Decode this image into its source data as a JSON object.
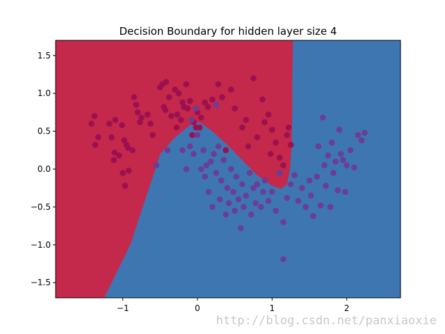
{
  "chart_data": {
    "type": "scatter",
    "title": "Decision Boundary for hidden layer size 4",
    "xlabel": "",
    "ylabel": "",
    "xlim": [
      -1.9,
      2.72
    ],
    "ylim": [
      -1.7,
      1.7
    ],
    "xticks": [
      -1,
      0,
      1,
      2
    ],
    "xtick_labels": [
      "−1",
      "0",
      "1",
      "2"
    ],
    "yticks": [
      -1.5,
      -1.0,
      -0.5,
      0.0,
      0.5,
      1.0,
      1.5
    ],
    "ytick_labels": [
      "−1.5",
      "−1.0",
      "−0.5",
      "0.0",
      "0.5",
      "1.0",
      "1.5"
    ],
    "grid": false,
    "legend": "none",
    "colors": {
      "region_red": "#c4284a",
      "region_blue": "#3e76b2",
      "class_0_point": "#9c1050",
      "class_1_point": "#6a3d96"
    },
    "decision_boundary": [
      [
        -1.25,
        -1.7
      ],
      [
        -0.9,
        -1.0
      ],
      [
        -0.7,
        -0.4
      ],
      [
        -0.58,
        -0.05
      ],
      [
        -0.5,
        0.2
      ],
      [
        -0.3,
        0.42
      ],
      [
        -0.1,
        0.58
      ],
      [
        0.03,
        0.62
      ],
      [
        0.2,
        0.5
      ],
      [
        0.4,
        0.32
      ],
      [
        0.6,
        0.12
      ],
      [
        0.8,
        -0.08
      ],
      [
        1.0,
        -0.22
      ],
      [
        1.12,
        -0.26
      ],
      [
        1.2,
        -0.2
      ],
      [
        1.24,
        0.0
      ],
      [
        1.26,
        0.3
      ],
      [
        1.27,
        0.8
      ],
      [
        1.27,
        1.2
      ],
      [
        1.28,
        1.7
      ]
    ],
    "series": [
      {
        "class": 0,
        "x": [
          -1.42,
          -1.38,
          -1.37,
          -1.33,
          -1.18,
          -1.15,
          -1.12,
          -1.11,
          -1.1,
          -1.05,
          -1.01,
          -1.0,
          -0.98,
          -0.97,
          -0.95,
          -0.93,
          -0.92,
          -0.87,
          -0.85,
          -0.82,
          -0.8,
          -0.77,
          -0.75,
          -0.67,
          -0.63,
          -0.6,
          -0.5,
          -0.47,
          -0.45,
          -0.43,
          -0.42,
          -0.38,
          -0.35,
          -0.3,
          -0.28,
          -0.27,
          -0.25,
          -0.22,
          -0.2,
          -0.18,
          -0.15,
          -0.13,
          -0.1,
          -0.07,
          -0.05,
          -0.02,
          0.0,
          0.05,
          0.1,
          0.14,
          0.2,
          0.28,
          0.33,
          0.38,
          0.45,
          0.5,
          0.6,
          0.65,
          0.68,
          0.75,
          0.8,
          0.87,
          0.9,
          0.95,
          0.98,
          1.0,
          1.05,
          1.1,
          1.15,
          1.2,
          1.22,
          1.25,
          0.03
        ],
        "y": [
          0.6,
          0.7,
          0.32,
          0.42,
          0.6,
          0.42,
          0.12,
          0.22,
          0.65,
          0.18,
          0.58,
          -0.05,
          0.38,
          -0.22,
          0.32,
          0.28,
          -0.02,
          0.25,
          0.95,
          0.85,
          0.75,
          0.62,
          0.68,
          0.72,
          0.6,
          0.45,
          1.08,
          1.12,
          0.82,
          0.78,
          1.15,
          0.95,
          0.7,
          1.05,
          0.55,
          0.72,
          1.0,
          0.65,
          0.88,
          0.82,
          1.12,
          0.8,
          0.9,
          0.45,
          0.62,
          0.55,
          0.75,
          0.68,
          0.88,
          0.82,
          0.92,
          1.12,
          0.95,
          0.25,
          1.05,
          0.8,
          0.55,
          0.65,
          0.3,
          1.2,
          0.42,
          0.92,
          0.62,
          0.72,
          0.2,
          0.52,
          0.35,
          0.15,
          0.05,
          0.45,
          0.55,
          0.32,
          0.55
        ]
      },
      {
        "class": 1,
        "x": [
          -0.55,
          -0.4,
          -0.2,
          -0.15,
          -0.1,
          -0.08,
          -0.05,
          0.0,
          0.05,
          0.08,
          0.1,
          0.12,
          0.15,
          0.18,
          0.2,
          0.22,
          0.25,
          0.28,
          0.3,
          0.32,
          0.35,
          0.38,
          0.4,
          0.42,
          0.45,
          0.48,
          0.5,
          0.52,
          0.55,
          0.58,
          0.6,
          0.62,
          0.65,
          0.7,
          0.72,
          0.75,
          0.78,
          0.8,
          0.85,
          0.88,
          0.9,
          0.95,
          1.0,
          1.05,
          1.1,
          1.15,
          1.2,
          1.25,
          1.3,
          1.35,
          1.4,
          1.45,
          1.5,
          1.52,
          1.55,
          1.6,
          1.62,
          1.65,
          1.7,
          1.72,
          1.75,
          1.78,
          1.8,
          1.82,
          1.85,
          1.88,
          1.9,
          1.92,
          1.95,
          1.98,
          2.0,
          2.05,
          2.1,
          2.15,
          2.2,
          2.24,
          1.68,
          0.25,
          -0.02
        ],
        "y": [
          0.05,
          0.25,
          0.25,
          0.0,
          0.3,
          0.65,
          0.2,
          0.45,
          0.0,
          0.25,
          -0.1,
          0.05,
          -0.3,
          0.1,
          -0.5,
          0.2,
          -0.05,
          0.3,
          -0.4,
          -0.15,
          0.12,
          -0.6,
          -0.25,
          -0.45,
          0.0,
          -0.3,
          -0.55,
          -0.1,
          -0.4,
          -0.78,
          -0.2,
          -0.5,
          -0.35,
          -0.05,
          -0.6,
          -0.25,
          -0.45,
          -0.2,
          -0.5,
          -0.3,
          -0.15,
          -0.42,
          -0.3,
          -0.55,
          -0.05,
          -0.7,
          -0.38,
          -0.2,
          -0.08,
          -0.42,
          -0.25,
          -0.5,
          -0.15,
          -0.35,
          -0.62,
          -0.1,
          0.3,
          -0.48,
          0.05,
          -0.22,
          0.18,
          -0.5,
          0.35,
          -0.05,
          0.1,
          -0.28,
          0.52,
          0.2,
          0.12,
          -0.3,
          0.05,
          0.25,
          0.02,
          0.45,
          0.38,
          0.48,
          0.68,
          0.85,
          0.8
        ]
      },
      {
        "class": 1,
        "x": [
          1.15
        ],
        "y": [
          -1.19
        ]
      }
    ]
  },
  "watermark": "http://blog.csdn.net/panxiaoxie"
}
